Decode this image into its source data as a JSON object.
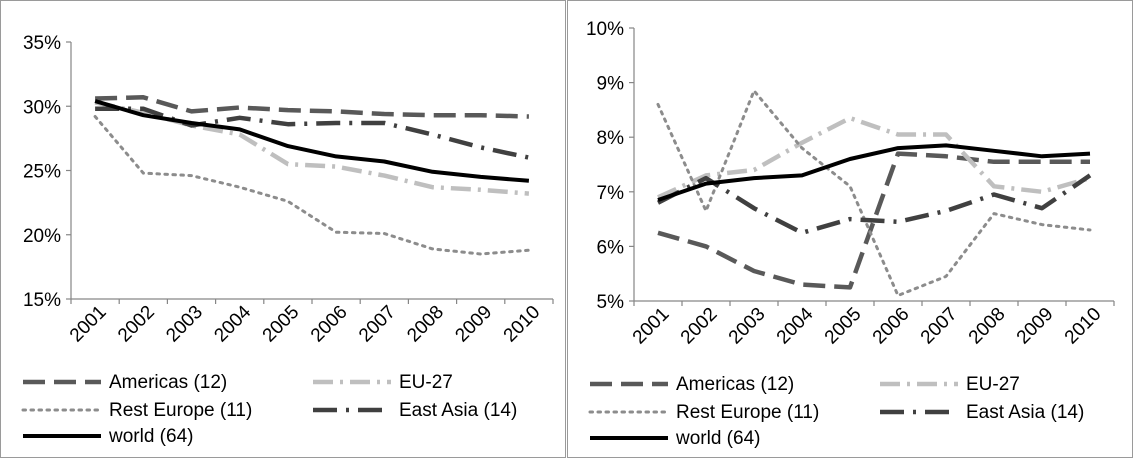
{
  "chart_data": [
    {
      "type": "line",
      "categories": [
        "2001",
        "2002",
        "2003",
        "2004",
        "2005",
        "2006",
        "2007",
        "2008",
        "2009",
        "2010"
      ],
      "ylim": [
        15,
        35
      ],
      "yticks": [
        "15%",
        "20%",
        "25%",
        "30%",
        "35%"
      ],
      "series": [
        {
          "name": "Americas (12)",
          "values": [
            30.6,
            30.7,
            29.6,
            29.9,
            29.7,
            29.6,
            29.4,
            29.3,
            29.3,
            29.2
          ],
          "color": "#595959",
          "style": "dash"
        },
        {
          "name": "EU-27",
          "values": [
            30.3,
            29.5,
            28.5,
            27.8,
            25.5,
            25.3,
            24.6,
            23.7,
            23.5,
            23.2
          ],
          "color": "#bfbfbf",
          "style": "dashdot"
        },
        {
          "name": "Rest Europe (11)",
          "values": [
            29.2,
            24.8,
            24.6,
            23.7,
            22.6,
            20.2,
            20.1,
            18.9,
            18.5,
            18.8
          ],
          "color": "#8c8c8c",
          "style": "dot"
        },
        {
          "name": "East Asia (14)",
          "values": [
            29.8,
            29.8,
            28.5,
            29.1,
            28.6,
            28.7,
            28.7,
            27.8,
            26.8,
            26.0
          ],
          "color": "#404040",
          "style": "longdashdot"
        },
        {
          "name": "world (64)",
          "values": [
            30.4,
            29.3,
            28.7,
            28.2,
            26.9,
            26.1,
            25.7,
            24.9,
            24.5,
            24.2
          ],
          "color": "#000000",
          "style": "solid"
        }
      ]
    },
    {
      "type": "line",
      "categories": [
        "2001",
        "2002",
        "2003",
        "2004",
        "2005",
        "2006",
        "2007",
        "2008",
        "2009",
        "2010"
      ],
      "ylim": [
        5,
        10
      ],
      "yticks": [
        "5%",
        "6%",
        "7%",
        "8%",
        "9%",
        "10%"
      ],
      "series": [
        {
          "name": "Americas (12)",
          "values": [
            6.25,
            6.0,
            5.55,
            5.3,
            5.25,
            7.7,
            7.65,
            7.55,
            7.55,
            7.55
          ],
          "color": "#595959",
          "style": "dash"
        },
        {
          "name": "EU-27",
          "values": [
            6.9,
            7.3,
            7.4,
            7.9,
            8.35,
            8.05,
            8.05,
            7.1,
            7.0,
            7.25
          ],
          "color": "#bfbfbf",
          "style": "dashdot"
        },
        {
          "name": "Rest Europe (11)",
          "values": [
            8.6,
            6.65,
            8.85,
            7.8,
            7.1,
            5.1,
            5.45,
            6.6,
            6.4,
            6.3
          ],
          "color": "#8c8c8c",
          "style": "dot"
        },
        {
          "name": "East Asia (14)",
          "values": [
            6.8,
            7.25,
            6.7,
            6.25,
            6.5,
            6.45,
            6.65,
            6.95,
            6.7,
            7.3
          ],
          "color": "#404040",
          "style": "longdashdot"
        },
        {
          "name": "world (64)",
          "values": [
            6.85,
            7.15,
            7.25,
            7.3,
            7.6,
            7.8,
            7.85,
            7.75,
            7.65,
            7.7
          ],
          "color": "#000000",
          "style": "solid"
        }
      ]
    }
  ]
}
